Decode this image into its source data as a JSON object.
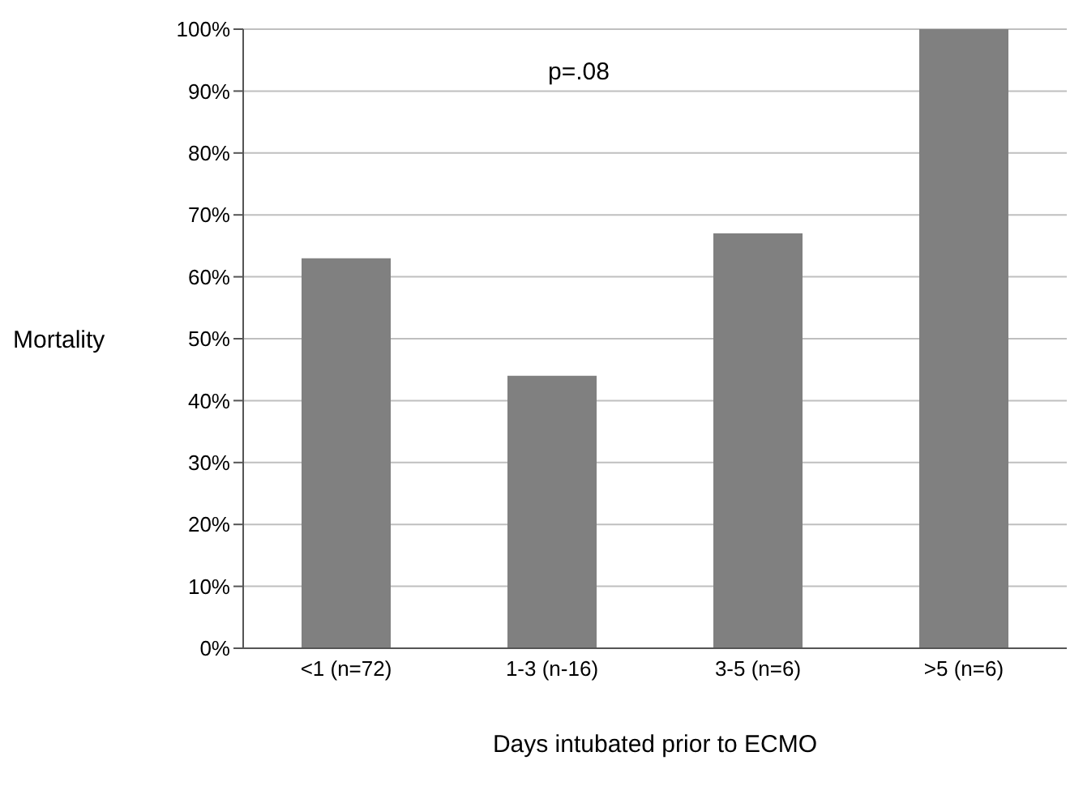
{
  "chart_data": {
    "type": "bar",
    "xlabel": "Days intubated prior to ECMO",
    "ylabel": "Mortality",
    "categories": [
      "<1 (n=72)",
      "1-3 (n-16)",
      "3-5 (n=6)",
      ">5 (n=6)"
    ],
    "values": [
      63,
      44,
      67,
      100
    ],
    "color": "#808080",
    "ylim": [
      0,
      100
    ],
    "yticks": [
      {
        "value": 0,
        "label": "0%"
      },
      {
        "value": 10,
        "label": "10%"
      },
      {
        "value": 20,
        "label": "20%"
      },
      {
        "value": 30,
        "label": "30%"
      },
      {
        "value": 40,
        "label": "40%"
      },
      {
        "value": 50,
        "label": "50%"
      },
      {
        "value": 60,
        "label": "60%"
      },
      {
        "value": 70,
        "label": "70%"
      },
      {
        "value": 80,
        "label": "80%"
      },
      {
        "value": 90,
        "label": "90%"
      },
      {
        "value": 100,
        "label": "100%"
      }
    ],
    "grid": "y",
    "annotations": [
      "p=.08"
    ]
  }
}
